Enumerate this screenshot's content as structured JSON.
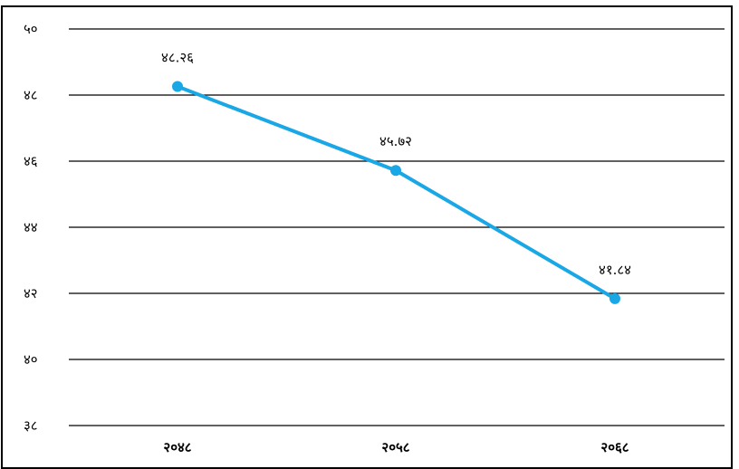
{
  "chart_data": {
    "type": "line",
    "title": "",
    "xlabel": "",
    "ylabel": "",
    "categories": [
      "२०४८",
      "२०५८",
      "२०६८"
    ],
    "series": [
      {
        "values": [
          48.26,
          45.72,
          41.84
        ],
        "data_labels": [
          "४८.२६",
          "४५.७२",
          "४१.८४"
        ],
        "color": "#1aa7e6"
      }
    ],
    "ylim": [
      38,
      50
    ],
    "yticks": [
      38,
      40,
      42,
      44,
      46,
      48,
      50
    ],
    "ytick_labels": [
      "३८",
      "४०",
      "४२",
      "४४",
      "४६",
      "४८",
      "५०"
    ],
    "grid": true,
    "legend": "none"
  }
}
